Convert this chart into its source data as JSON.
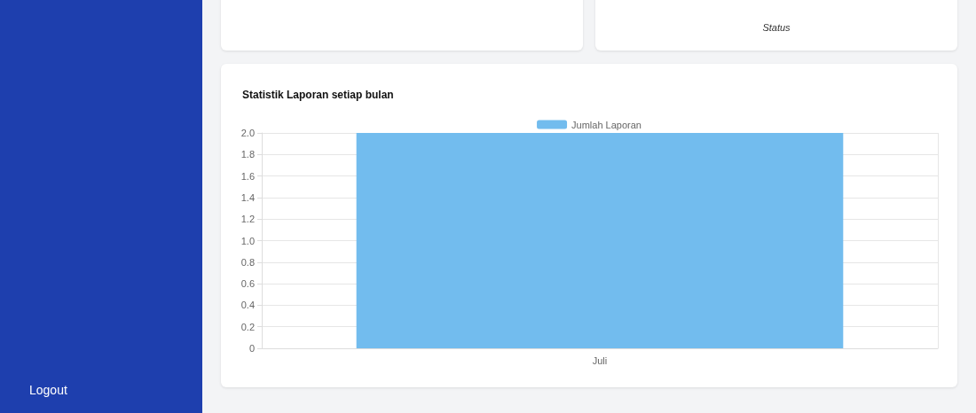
{
  "chart_data": {
    "type": "bar",
    "title": "Statistik Laporan setiap bulan",
    "categories": [
      "Juli"
    ],
    "series": [
      {
        "name": "Jumlah Laporan",
        "color": "#72bcee",
        "values": [
          2
        ]
      }
    ],
    "ylim": [
      0,
      2
    ],
    "yticks": [
      0,
      0.2,
      0.4,
      0.6,
      0.8,
      {
        "value": 1,
        "label": "1.0"
      },
      1.2,
      1.4,
      1.6,
      1.8,
      {
        "value": 2,
        "label": "2.0"
      }
    ],
    "grid": true,
    "legend": "top",
    "annotations": [
      "Status",
      "Logout"
    ]
  }
}
